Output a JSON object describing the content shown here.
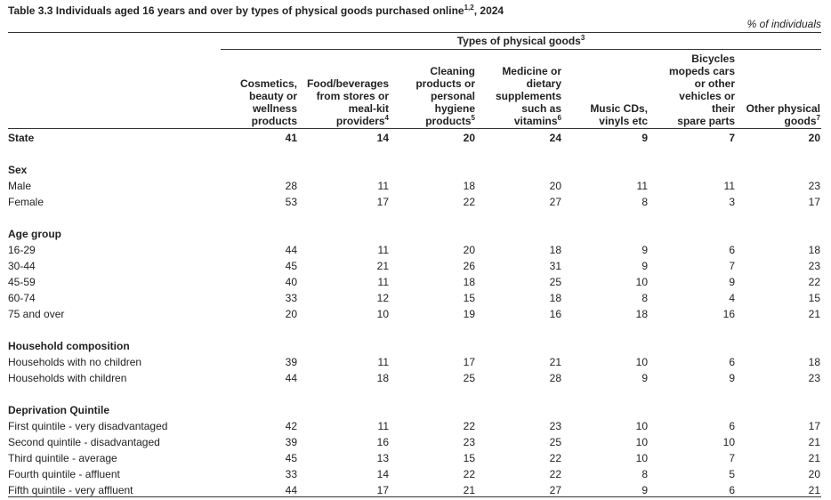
{
  "title": {
    "text": "Table 3.3 Individuals aged 16 years and over by types of physical goods purchased online",
    "sup": "1,2",
    "suffix": ", 2024"
  },
  "unit": "% of individuals",
  "group_header": {
    "text": "Types of physical goods",
    "sup": "3"
  },
  "columns": [
    {
      "lines": [
        "Cosmetics,",
        "beauty or",
        "wellness",
        "products"
      ],
      "sup": ""
    },
    {
      "lines": [
        "Food/beverages",
        "from stores or",
        "meal-kit",
        "providers"
      ],
      "sup": "4"
    },
    {
      "lines": [
        "Cleaning",
        "products or",
        "personal",
        "hygiene",
        "products"
      ],
      "sup": "5"
    },
    {
      "lines": [
        "Medicine or",
        "dietary",
        "supplements",
        "such as",
        "vitamins"
      ],
      "sup": "6"
    },
    {
      "lines": [
        "Music CDs,",
        "vinyls etc"
      ],
      "sup": ""
    },
    {
      "lines": [
        "Bicycles",
        "mopeds cars",
        "or other",
        "vehicles or",
        "their",
        "spare parts"
      ],
      "sup": ""
    },
    {
      "lines": [
        "Other physical",
        "goods"
      ],
      "sup": "7"
    }
  ],
  "state_row": {
    "label": "State",
    "values": [
      "41",
      "14",
      "20",
      "24",
      "9",
      "7",
      "20"
    ]
  },
  "sections": [
    {
      "title": "Sex",
      "rows": [
        {
          "label": "Male",
          "values": [
            "28",
            "11",
            "18",
            "20",
            "11",
            "11",
            "23"
          ]
        },
        {
          "label": "Female",
          "values": [
            "53",
            "17",
            "22",
            "27",
            "8",
            "3",
            "17"
          ]
        }
      ]
    },
    {
      "title": "Age group",
      "rows": [
        {
          "label": "16-29",
          "values": [
            "44",
            "11",
            "20",
            "18",
            "9",
            "6",
            "18"
          ]
        },
        {
          "label": "30-44",
          "values": [
            "45",
            "21",
            "26",
            "31",
            "9",
            "7",
            "23"
          ]
        },
        {
          "label": "45-59",
          "values": [
            "40",
            "11",
            "18",
            "25",
            "10",
            "9",
            "22"
          ]
        },
        {
          "label": "60-74",
          "values": [
            "33",
            "12",
            "15",
            "18",
            "8",
            "4",
            "15"
          ]
        },
        {
          "label": "75 and over",
          "values": [
            "20",
            "10",
            "19",
            "16",
            "18",
            "16",
            "21"
          ]
        }
      ]
    },
    {
      "title": "Household composition",
      "rows": [
        {
          "label": "Households with no children",
          "values": [
            "39",
            "11",
            "17",
            "21",
            "10",
            "6",
            "18"
          ]
        },
        {
          "label": "Households with children",
          "values": [
            "44",
            "18",
            "25",
            "28",
            "9",
            "9",
            "23"
          ]
        }
      ]
    },
    {
      "title": "Deprivation Quintile",
      "rows": [
        {
          "label": "First quintile - very disadvantaged",
          "values": [
            "42",
            "11",
            "22",
            "23",
            "10",
            "6",
            "17"
          ]
        },
        {
          "label": "Second quintile - disadvantaged",
          "values": [
            "39",
            "16",
            "23",
            "25",
            "10",
            "10",
            "21"
          ]
        },
        {
          "label": "Third quintile - average",
          "values": [
            "45",
            "13",
            "15",
            "22",
            "10",
            "7",
            "21"
          ]
        },
        {
          "label": "Fourth quintile - affluent",
          "values": [
            "33",
            "14",
            "22",
            "22",
            "8",
            "5",
            "20"
          ]
        },
        {
          "label": "Fifth quintile - very affluent",
          "values": [
            "44",
            "17",
            "21",
            "27",
            "9",
            "6",
            "21"
          ]
        }
      ]
    }
  ]
}
